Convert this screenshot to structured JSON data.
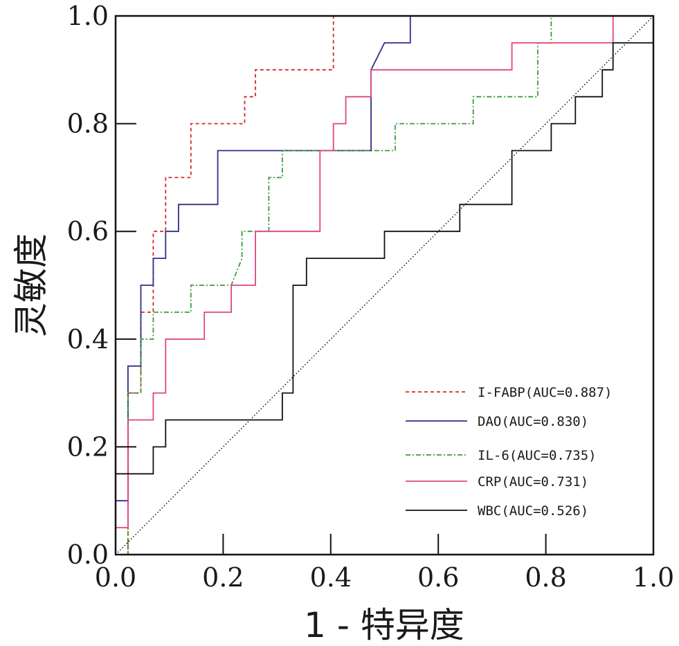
{
  "chart_data": {
    "type": "line",
    "title": "",
    "xlabel": "1 - 特异度",
    "ylabel": "灵敏度",
    "xlim": [
      0.0,
      1.0
    ],
    "ylim": [
      0.0,
      1.0
    ],
    "xticks": [
      "0.0",
      "0.2",
      "0.4",
      "0.6",
      "0.8",
      "1.0"
    ],
    "yticks": [
      "0.0",
      "0.2",
      "0.4",
      "0.6",
      "0.8",
      "1.0"
    ],
    "grid": false,
    "legend_position": "lower-right",
    "reference_line": {
      "name": "diagonal",
      "x": [
        0,
        1
      ],
      "y": [
        0,
        1
      ],
      "color": "#000000",
      "style": "dotted"
    },
    "series": [
      {
        "name": "I-FABP(AUC=0.887)",
        "color": "#d62728",
        "style": "dashed",
        "x": [
          0,
          0.023,
          0.023,
          0.047,
          0.047,
          0.07,
          0.07,
          0.093,
          0.093,
          0.14,
          0.14,
          0.24,
          0.24,
          0.26,
          0.26,
          0.405,
          0.405,
          1.0
        ],
        "y": [
          0,
          0,
          0.3,
          0.3,
          0.45,
          0.45,
          0.6,
          0.6,
          0.7,
          0.7,
          0.8,
          0.8,
          0.85,
          0.85,
          0.9,
          0.9,
          1.0,
          1.0
        ]
      },
      {
        "name": "DAO(AUC=0.830)",
        "color": "#2e2e8a",
        "style": "solid",
        "x": [
          0,
          0,
          0.023,
          0.023,
          0.047,
          0.047,
          0.07,
          0.07,
          0.093,
          0.093,
          0.117,
          0.117,
          0.19,
          0.19,
          0.475,
          0.475,
          0.5,
          0.5,
          0.548,
          0.548,
          1.0
        ],
        "y": [
          0,
          0.1,
          0.1,
          0.35,
          0.35,
          0.5,
          0.5,
          0.55,
          0.55,
          0.6,
          0.6,
          0.65,
          0.65,
          0.75,
          0.75,
          0.9,
          0.95,
          0.95,
          0.95,
          1.0,
          1.0
        ]
      },
      {
        "name": "IL-6(AUC=0.735)",
        "color": "#3a9a3a",
        "style": "dashdot",
        "x": [
          0,
          0.023,
          0.023,
          0.047,
          0.047,
          0.07,
          0.07,
          0.14,
          0.14,
          0.215,
          0.235,
          0.235,
          0.285,
          0.285,
          0.31,
          0.31,
          0.52,
          0.52,
          0.665,
          0.665,
          0.785,
          0.785,
          0.81,
          0.81,
          1.0
        ],
        "y": [
          0,
          0,
          0.3,
          0.3,
          0.4,
          0.4,
          0.45,
          0.45,
          0.5,
          0.5,
          0.55,
          0.6,
          0.6,
          0.7,
          0.7,
          0.75,
          0.75,
          0.8,
          0.8,
          0.85,
          0.85,
          0.95,
          0.95,
          1.0,
          1.0
        ]
      },
      {
        "name": "CRP(AUC=0.731)",
        "color": "#e0447a",
        "style": "solid",
        "x": [
          0,
          0,
          0.023,
          0.023,
          0.07,
          0.07,
          0.093,
          0.093,
          0.165,
          0.165,
          0.215,
          0.215,
          0.26,
          0.26,
          0.38,
          0.38,
          0.405,
          0.405,
          0.428,
          0.428,
          0.475,
          0.475,
          0.737,
          0.737,
          0.925,
          0.925,
          1.0
        ],
        "y": [
          0,
          0.05,
          0.05,
          0.25,
          0.25,
          0.3,
          0.3,
          0.4,
          0.4,
          0.45,
          0.45,
          0.5,
          0.5,
          0.6,
          0.6,
          0.75,
          0.75,
          0.8,
          0.8,
          0.85,
          0.85,
          0.9,
          0.9,
          0.95,
          0.95,
          1.0,
          1.0
        ]
      },
      {
        "name": "WBC(AUC=0.526)",
        "color": "#111111",
        "style": "solid",
        "x": [
          0,
          0,
          0.07,
          0.07,
          0.093,
          0.093,
          0.31,
          0.31,
          0.33,
          0.33,
          0.355,
          0.355,
          0.5,
          0.5,
          0.64,
          0.64,
          0.737,
          0.737,
          0.81,
          0.81,
          0.855,
          0.855,
          0.905,
          0.905,
          0.925,
          0.925,
          1.0
        ],
        "y": [
          0,
          0.15,
          0.15,
          0.2,
          0.2,
          0.25,
          0.25,
          0.3,
          0.3,
          0.5,
          0.5,
          0.55,
          0.55,
          0.6,
          0.6,
          0.65,
          0.65,
          0.75,
          0.75,
          0.8,
          0.8,
          0.85,
          0.85,
          0.9,
          0.9,
          0.95,
          0.95
        ]
      }
    ]
  }
}
